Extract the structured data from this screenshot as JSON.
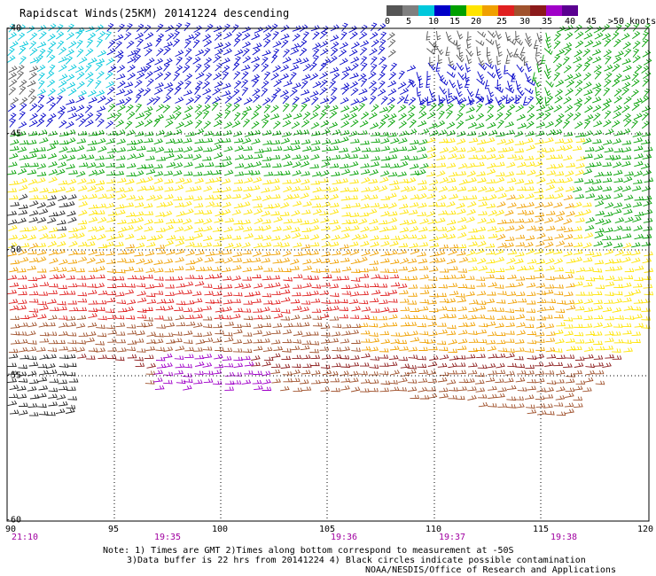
{
  "title": "Rapidscat Winds(25KM) 20141224 descending",
  "legend": {
    "labels": [
      "0",
      "5",
      "10",
      "15",
      "20",
      "25",
      "30",
      "35",
      "40",
      "45",
      ">50 knots"
    ],
    "colors": [
      "#555555",
      "#7f7f7f",
      "#00c8dc",
      "#0000c8",
      "#00a000",
      "#ffe400",
      "#f0a000",
      "#e02020",
      "#a0522d",
      "#8b1a1a",
      "#a000c8",
      "#5a0090"
    ]
  },
  "lon_labels": [
    "90",
    "95",
    "100",
    "105",
    "110",
    "115",
    "120"
  ],
  "lat_labels": [
    "-40",
    "-45",
    "-50",
    "-55",
    "-60"
  ],
  "time_labels": [
    "21:10",
    "19:35",
    "19:36",
    "19:37",
    "19:38"
  ],
  "notes": {
    "line1": "Note: 1) Times are GMT 2)Times along bottom correspond to measurement at -50S",
    "line2": "3)Data buffer is 22 hrs from 20141224 4) Black circles indicate possible contamination",
    "line3": "NOAA/NESDIS/Office of Research and Applications"
  }
}
